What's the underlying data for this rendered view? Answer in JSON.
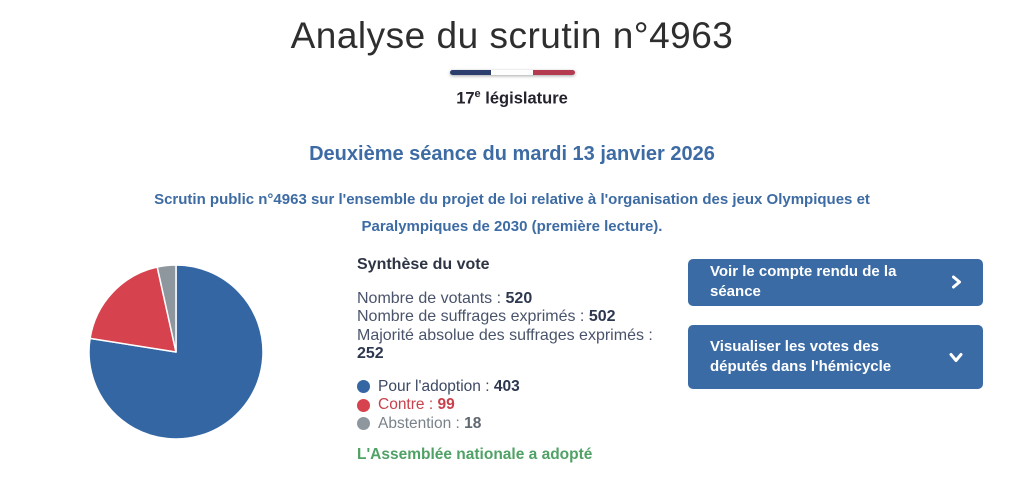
{
  "header": {
    "title": "Analyse du scrutin n°4963",
    "legislature_number": "17",
    "legislature_exponent": "e",
    "legislature_word": "législature"
  },
  "flag_colors": {
    "blue": "#2c3e6d",
    "white": "#fdfdfd",
    "red": "#b43a50"
  },
  "session": {
    "heading": "Deuxième séance du mardi 13 janvier 2026",
    "description": "Scrutin public n°4963 sur l'ensemble du projet de loi relative à l'organisation des jeux Olympiques et Paralympiques de 2030 (première lecture)."
  },
  "synthesis": {
    "title": "Synthèse du vote",
    "stats": [
      {
        "label": "Nombre de votants : ",
        "value": "520"
      },
      {
        "label": "Nombre de suffrages exprimés : ",
        "value": "502"
      },
      {
        "label": "Majorité absolue des suffrages exprimés : ",
        "value": "252"
      }
    ],
    "legend": [
      {
        "label": "Pour l'adoption : ",
        "value": "403",
        "dot_color": "#3366a3",
        "text_color": "#3c4964",
        "value_color": "#2d3750"
      },
      {
        "label": "Contre : ",
        "value": "99",
        "dot_color": "#d6434e",
        "text_color": "#c8414b",
        "value_color": "#c8414b"
      },
      {
        "label": "Abstention : ",
        "value": "18",
        "dot_color": "#8f979e",
        "text_color": "#79828b",
        "value_color": "#5f6770"
      }
    ],
    "result": "L'Assemblée nationale a adopté",
    "result_color": "#50a165"
  },
  "buttons": [
    {
      "label": "Voir le compte rendu de la séance",
      "icon": "chevron-right-icon"
    },
    {
      "label": "Visualiser les votes des députés dans l'hémicycle",
      "icon": "chevron-down-icon"
    }
  ],
  "chart_data": {
    "type": "pie",
    "title": "",
    "labels": [
      "Pour l'adoption",
      "Contre",
      "Abstention"
    ],
    "values": [
      403,
      99,
      18
    ],
    "total": 520,
    "colors": [
      "#3366a3",
      "#d6434e",
      "#8f979e"
    ],
    "start_angle_deg": 0,
    "direction": "clockwise",
    "slice_border_color": "#ffffff",
    "legend_position": "right-text-list"
  }
}
